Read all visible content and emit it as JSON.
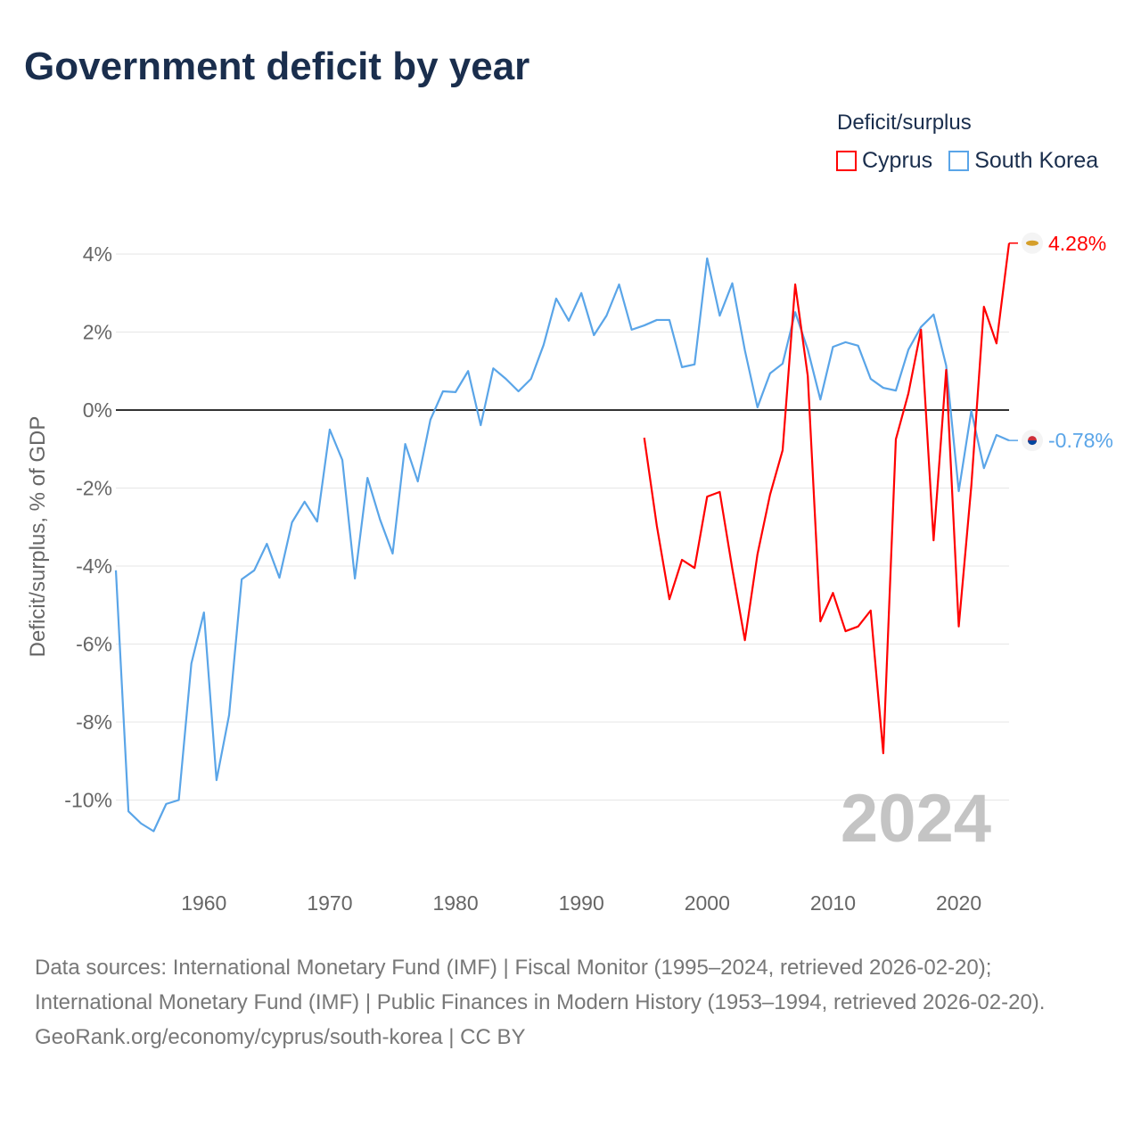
{
  "title": "Government deficit by year",
  "legend": {
    "title": "Deficit/surplus",
    "items": [
      {
        "name": "Cyprus",
        "color": "#ff0000"
      },
      {
        "name": "South Korea",
        "color": "#5aa5e8"
      }
    ]
  },
  "footer": {
    "sources": "Data sources: International Monetary Fund (IMF) | Fiscal Monitor (1995–2024, retrieved 2026-02-20); International Monetary Fund (IMF) | Public Finances in Modern History (1953–1994, retrieved 2026-02-20).",
    "credit": "GeoRank.org/economy/cyprus/south-korea | CC BY"
  },
  "chart_data": {
    "type": "line",
    "title": "Government deficit by year",
    "xlabel": "",
    "ylabel": "Deficit/surplus, % of GDP",
    "xlim": [
      1953,
      2024
    ],
    "ylim": [
      -11.5,
      4.5
    ],
    "x_ticks": [
      1960,
      1970,
      1980,
      1990,
      2000,
      2010,
      2020
    ],
    "y_ticks": [
      4,
      2,
      0,
      -2,
      -4,
      -6,
      -8,
      -10
    ],
    "y_tick_labels": [
      "4%",
      "2%",
      "0%",
      "-2%",
      "-4%",
      "-6%",
      "-8%",
      "-10%"
    ],
    "year_label": "2024",
    "series": [
      {
        "name": "South Korea",
        "color": "#5aa5e8",
        "start": 1953,
        "end_label": "-0.78%",
        "values": [
          -4.11,
          -10.29,
          -10.6,
          -10.8,
          -10.1,
          -10.0,
          -6.5,
          -5.19,
          -9.49,
          -7.82,
          -4.34,
          -4.11,
          -3.43,
          -4.3,
          -2.88,
          -2.35,
          -2.86,
          -0.5,
          -1.28,
          -4.32,
          -1.74,
          -2.81,
          -3.68,
          -0.87,
          -1.83,
          -0.25,
          0.48,
          0.46,
          1.0,
          -0.39,
          1.07,
          0.8,
          0.48,
          0.8,
          1.67,
          2.86,
          2.29,
          3.0,
          1.92,
          2.42,
          3.22,
          2.06,
          2.17,
          2.31,
          2.31,
          1.1,
          1.17,
          3.89,
          2.42,
          3.25,
          1.53,
          0.07,
          0.94,
          1.19,
          2.51,
          1.55,
          0.27,
          1.62,
          1.74,
          1.65,
          0.8,
          0.57,
          0.5,
          1.55,
          2.13,
          2.45,
          1.14,
          -2.08,
          -0.02,
          -1.49,
          -0.64,
          -0.78
        ]
      },
      {
        "name": "Cyprus",
        "color": "#ff0000",
        "start": 1995,
        "end_label": "4.28%",
        "values": [
          -0.71,
          -2.97,
          -4.85,
          -3.84,
          -4.05,
          -2.22,
          -2.1,
          -4.07,
          -5.9,
          -3.7,
          -2.17,
          -1.03,
          3.22,
          0.87,
          -5.42,
          -4.69,
          -5.67,
          -5.55,
          -5.14,
          -8.8,
          -0.75,
          0.43,
          2.06,
          -3.34,
          1.03,
          -5.55,
          -1.94,
          2.65,
          1.71,
          4.28
        ]
      }
    ]
  }
}
